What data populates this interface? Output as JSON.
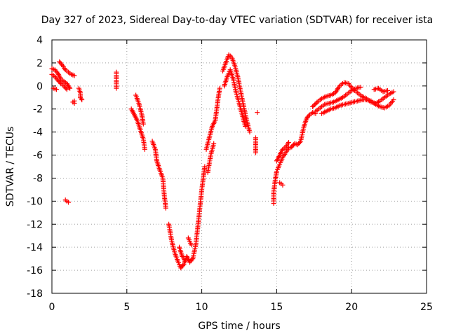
{
  "chart_data": {
    "type": "scatter",
    "title": "Day 327 of 2023, Sidereal Day-to-day VTEC variation (SDTVAR) for receiver ista",
    "xlabel": "GPS time / hours",
    "ylabel": "SDTVAR / TECUs",
    "xlim": [
      0,
      25
    ],
    "ylim": [
      -18,
      4
    ],
    "xticks": [
      "0",
      "5",
      "10",
      "15",
      "20",
      "25"
    ],
    "yticks": [
      "4",
      "2",
      "0",
      "-2",
      "-4",
      "-6",
      "-8",
      "-10",
      "-12",
      "-14",
      "-16",
      "-18"
    ],
    "grid": true,
    "marker": "+",
    "color": "#ff0000",
    "series": [
      {
        "name": "SDTVAR",
        "segments": [
          [
            [
              0.0,
              1.5
            ],
            [
              0.2,
              1.4
            ],
            [
              0.4,
              1.1
            ],
            [
              0.6,
              0.6
            ],
            [
              0.8,
              0.4
            ],
            [
              1.0,
              0.2
            ],
            [
              1.1,
              0.0
            ],
            [
              1.2,
              -0.2
            ]
          ],
          [
            [
              0.0,
              1.0
            ],
            [
              0.2,
              0.8
            ],
            [
              0.4,
              0.5
            ],
            [
              0.6,
              0.2
            ],
            [
              0.8,
              0.0
            ],
            [
              1.0,
              -0.3
            ]
          ],
          [
            [
              0.5,
              2.1
            ],
            [
              0.7,
              1.8
            ],
            [
              0.9,
              1.4
            ],
            [
              1.1,
              1.2
            ],
            [
              1.3,
              1.0
            ],
            [
              1.5,
              0.9
            ]
          ],
          [
            [
              0.1,
              -0.2
            ],
            [
              0.3,
              -0.3
            ]
          ],
          [
            [
              1.4,
              -1.4
            ],
            [
              1.5,
              -1.5
            ],
            [
              1.5,
              -1.3
            ]
          ],
          [
            [
              1.8,
              -0.2
            ],
            [
              1.9,
              -0.6
            ],
            [
              1.9,
              -1.0
            ],
            [
              2.0,
              -1.2
            ]
          ],
          [
            [
              0.9,
              -9.9
            ],
            [
              1.0,
              -10.0
            ],
            [
              1.1,
              -10.1
            ]
          ],
          [
            [
              4.3,
              1.2
            ],
            [
              4.3,
              0.5
            ],
            [
              4.3,
              -0.2
            ]
          ],
          [
            [
              5.3,
              -2.0
            ],
            [
              5.5,
              -2.5
            ],
            [
              5.7,
              -3.0
            ],
            [
              5.9,
              -3.8
            ],
            [
              6.1,
              -4.6
            ],
            [
              6.2,
              -5.5
            ]
          ],
          [
            [
              5.6,
              -0.8
            ],
            [
              5.8,
              -1.5
            ],
            [
              6.0,
              -2.5
            ],
            [
              6.1,
              -3.3
            ]
          ],
          [
            [
              6.7,
              -4.8
            ],
            [
              6.9,
              -5.5
            ],
            [
              7.0,
              -6.5
            ],
            [
              7.2,
              -7.3
            ],
            [
              7.4,
              -8.0
            ],
            [
              7.5,
              -9.5
            ],
            [
              7.6,
              -10.6
            ]
          ],
          [
            [
              7.8,
              -12.0
            ],
            [
              8.0,
              -13.5
            ],
            [
              8.2,
              -14.5
            ],
            [
              8.4,
              -15.2
            ],
            [
              8.6,
              -15.8
            ],
            [
              8.8,
              -15.5
            ],
            [
              9.0,
              -14.8
            ],
            [
              9.2,
              -15.3
            ],
            [
              9.4,
              -15.0
            ],
            [
              9.6,
              -13.8
            ],
            [
              9.8,
              -11.5
            ],
            [
              10.0,
              -9.0
            ],
            [
              10.2,
              -7.0
            ]
          ],
          [
            [
              8.5,
              -14.0
            ],
            [
              8.7,
              -14.8
            ],
            [
              8.9,
              -15.2
            ]
          ],
          [
            [
              9.1,
              -13.2
            ],
            [
              9.3,
              -13.8
            ]
          ],
          [
            [
              10.3,
              -5.5
            ],
            [
              10.5,
              -4.5
            ],
            [
              10.7,
              -3.5
            ],
            [
              10.9,
              -3.0
            ],
            [
              11.0,
              -2.0
            ],
            [
              11.1,
              -1.0
            ],
            [
              11.2,
              -0.2
            ]
          ],
          [
            [
              10.4,
              -7.5
            ],
            [
              10.6,
              -6.0
            ],
            [
              10.8,
              -5.0
            ]
          ],
          [
            [
              11.4,
              1.3
            ],
            [
              11.6,
              2.0
            ],
            [
              11.8,
              2.7
            ],
            [
              12.0,
              2.5
            ],
            [
              12.2,
              1.8
            ],
            [
              12.4,
              0.8
            ],
            [
              12.6,
              -0.5
            ],
            [
              12.8,
              -1.8
            ],
            [
              13.0,
              -3.0
            ],
            [
              13.2,
              -4.0
            ]
          ],
          [
            [
              11.5,
              0.0
            ],
            [
              11.7,
              0.8
            ],
            [
              11.9,
              1.4
            ],
            [
              12.1,
              0.6
            ],
            [
              12.3,
              -0.6
            ],
            [
              12.5,
              -1.5
            ],
            [
              12.7,
              -2.5
            ],
            [
              12.9,
              -3.5
            ]
          ],
          [
            [
              13.7,
              -2.3
            ]
          ],
          [
            [
              13.6,
              -4.5
            ],
            [
              13.6,
              -5.8
            ]
          ],
          [
            [
              14.8,
              -10.2
            ],
            [
              14.8,
              -9.2
            ],
            [
              14.9,
              -8.2
            ],
            [
              15.0,
              -7.4
            ],
            [
              15.2,
              -6.8
            ],
            [
              15.4,
              -6.2
            ],
            [
              15.6,
              -5.8
            ],
            [
              15.8,
              -5.4
            ],
            [
              16.0,
              -5.3
            ],
            [
              16.2,
              -5.0
            ],
            [
              16.4,
              -5.1
            ],
            [
              16.6,
              -4.8
            ],
            [
              16.8,
              -3.6
            ],
            [
              17.0,
              -2.8
            ],
            [
              17.2,
              -2.5
            ],
            [
              17.4,
              -2.3
            ],
            [
              17.6,
              -2.4
            ]
          ],
          [
            [
              15.2,
              -8.4
            ],
            [
              15.4,
              -8.6
            ]
          ],
          [
            [
              15.0,
              -6.5
            ],
            [
              15.2,
              -6.0
            ],
            [
              15.4,
              -5.5
            ],
            [
              15.6,
              -5.3
            ],
            [
              15.8,
              -4.9
            ]
          ],
          [
            [
              17.4,
              -1.8
            ],
            [
              17.7,
              -1.4
            ],
            [
              18.0,
              -1.1
            ],
            [
              18.3,
              -0.9
            ],
            [
              18.6,
              -0.8
            ],
            [
              18.9,
              -0.6
            ],
            [
              19.2,
              0.0
            ],
            [
              19.5,
              0.3
            ],
            [
              19.8,
              0.2
            ],
            [
              20.1,
              -0.3
            ],
            [
              20.4,
              -0.6
            ],
            [
              20.7,
              -0.9
            ],
            [
              21.0,
              -1.1
            ],
            [
              21.3,
              -1.4
            ],
            [
              21.6,
              -1.5
            ],
            [
              21.9,
              -1.3
            ],
            [
              22.2,
              -1.0
            ],
            [
              22.5,
              -0.7
            ],
            [
              22.8,
              -0.5
            ]
          ],
          [
            [
              17.6,
              -2.2
            ],
            [
              17.9,
              -1.9
            ],
            [
              18.2,
              -1.6
            ],
            [
              18.5,
              -1.5
            ],
            [
              18.8,
              -1.4
            ],
            [
              19.1,
              -1.2
            ],
            [
              19.4,
              -1.0
            ],
            [
              19.7,
              -0.7
            ],
            [
              20.0,
              -0.4
            ],
            [
              20.3,
              -0.2
            ],
            [
              20.6,
              -0.1
            ]
          ],
          [
            [
              18.0,
              -2.4
            ],
            [
              18.3,
              -2.2
            ],
            [
              18.6,
              -2.0
            ],
            [
              18.9,
              -1.9
            ],
            [
              19.2,
              -1.7
            ],
            [
              19.5,
              -1.6
            ],
            [
              19.8,
              -1.5
            ],
            [
              20.1,
              -1.4
            ],
            [
              20.4,
              -1.3
            ],
            [
              20.7,
              -1.2
            ],
            [
              21.0,
              -1.2
            ],
            [
              21.3,
              -1.3
            ],
            [
              21.6,
              -1.6
            ],
            [
              21.9,
              -1.8
            ],
            [
              22.2,
              -1.9
            ],
            [
              22.5,
              -1.7
            ],
            [
              22.8,
              -1.2
            ]
          ],
          [
            [
              21.5,
              -0.3
            ],
            [
              21.8,
              -0.2
            ],
            [
              22.1,
              -0.5
            ],
            [
              22.4,
              -0.4
            ]
          ]
        ]
      }
    ]
  }
}
